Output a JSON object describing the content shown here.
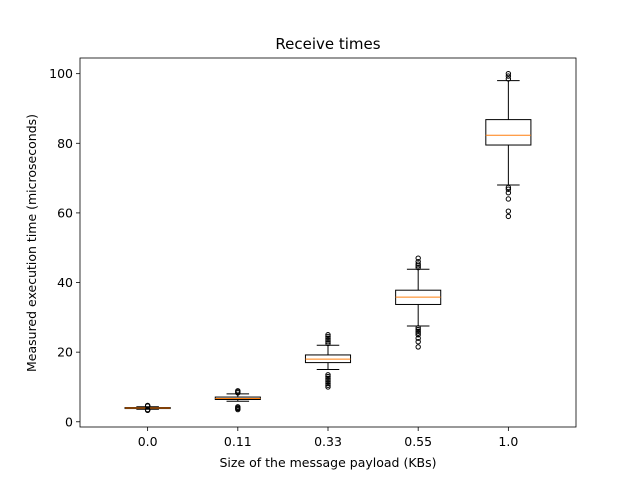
{
  "chart_data": {
    "type": "box",
    "title": "Receive times",
    "xlabel": "Size of the message payload (KBs)",
    "ylabel": "Measured execution time (microseconds)",
    "ylim": [
      -1.5,
      104.5
    ],
    "yticks": [
      0,
      20,
      40,
      60,
      80,
      100
    ],
    "categories": [
      "0.0",
      "0.11",
      "0.33",
      "0.55",
      "1.0"
    ],
    "boxes": [
      {
        "category": "0.0",
        "whisker_low": 3.6,
        "q1": 3.8,
        "median": 3.95,
        "q3": 4.1,
        "whisker_high": 4.3,
        "fliers": [
          3.3,
          3.4,
          3.5,
          4.5,
          4.6,
          4.7
        ]
      },
      {
        "category": "0.11",
        "whisker_low": 5.9,
        "q1": 6.4,
        "median": 6.7,
        "q3": 7.1,
        "whisker_high": 8.0,
        "fliers": [
          3.5,
          3.8,
          4.0,
          4.3,
          8.3,
          8.6,
          8.9
        ]
      },
      {
        "category": "0.33",
        "whisker_low": 15.0,
        "q1": 17.0,
        "median": 18.0,
        "q3": 19.2,
        "whisker_high": 22.0,
        "fliers": [
          10.0,
          10.5,
          11.0,
          11.5,
          12.0,
          12.5,
          13.0,
          13.5,
          22.5,
          23.0,
          23.5,
          24.0,
          24.5,
          25.0
        ]
      },
      {
        "category": "0.55",
        "whisker_low": 27.5,
        "q1": 33.7,
        "median": 35.8,
        "q3": 37.8,
        "whisker_high": 43.8,
        "fliers": [
          21.5,
          23.0,
          24.0,
          25.0,
          25.5,
          26.0,
          26.5,
          27.0,
          44.3,
          44.8,
          45.3,
          46.0,
          47.0
        ]
      },
      {
        "category": "1.0",
        "whisker_low": 68.0,
        "q1": 79.5,
        "median": 82.3,
        "q3": 86.8,
        "whisker_high": 98.0,
        "fliers": [
          59.0,
          60.5,
          64.0,
          65.8,
          66.8,
          67.3,
          98.5,
          99.3,
          100.0
        ]
      }
    ],
    "colors": {
      "box": "#000000",
      "median": "#ff7f0e",
      "flier": "#000000"
    },
    "grid": false,
    "legend": "none"
  }
}
